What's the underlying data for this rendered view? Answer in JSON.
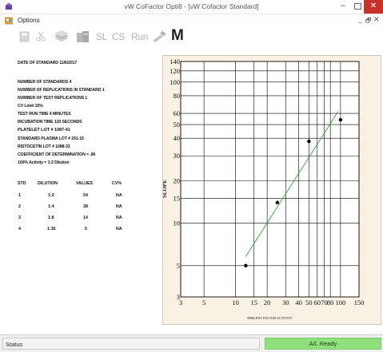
{
  "window": {
    "title": "vW CoFactor Opti8 - [vW Cofactor Standard]",
    "min_glyph": "–",
    "close_glyph": "✕"
  },
  "menu": {
    "options_label": "Options",
    "mdi_min": "_",
    "mdi_restore": "🗗",
    "mdi_close": "✕"
  },
  "toolbar": {
    "sl_label": "SL",
    "cs_label": "CS",
    "run_label": "Run",
    "m_label": "M"
  },
  "report": {
    "lines": [
      "DATE OF STANDARD 11/6/2017",
      "NUMBER OF STANDARDS 4",
      "NUMBER OF REPLICATIONS IN STANDARD 1",
      "NUMBER OF TEST REPLICATIONS 1",
      "CV Limit 15%",
      "TEST RUN TIME 4 MINUTES",
      "INCUBATION TIME 120 SECONDS",
      "PLATELET LOT # 1087-41",
      "STANDARD PLASMA LOT # 291-15",
      "RISTOCETIN LOT # 1088-33",
      "COEFFICIENT OF DETERMINATION = .96",
      "100% Activity = 1:2 Dilution"
    ],
    "table": {
      "headers": [
        "STD",
        "DILUTION",
        "VALUES",
        "CV%"
      ],
      "rows": [
        [
          "1",
          "1:2",
          "54",
          "NA"
        ],
        [
          "2",
          "1:4",
          "38",
          "NA"
        ],
        [
          "3",
          "1:8",
          "14",
          "NA"
        ],
        [
          "4",
          "1:16",
          "5",
          "NA"
        ]
      ]
    }
  },
  "chart_data": {
    "type": "scatter",
    "xlabel": "PERCENT FACTOR ACTIVITY",
    "ylabel": "SLOPE",
    "x_scale": "log",
    "y_scale": "log",
    "xlim": [
      3,
      150
    ],
    "ylim": [
      3,
      140
    ],
    "x_ticks": [
      3,
      5,
      10,
      15,
      20,
      30,
      40,
      50,
      60,
      70,
      80,
      100,
      150
    ],
    "x_tick_labels": [
      "3",
      "5",
      "10",
      "15",
      "20",
      "30",
      "40",
      "50",
      "60",
      "70",
      "80",
      "100",
      "150"
    ],
    "y_ticks": [
      3,
      5,
      10,
      15,
      20,
      30,
      40,
      50,
      60,
      80,
      100,
      120,
      140
    ],
    "y_tick_labels": [
      "3",
      "5",
      "10",
      "15",
      "20",
      "30",
      "40",
      "50",
      "60",
      "80",
      "100",
      "120",
      "140"
    ],
    "grid": true,
    "points": [
      {
        "x": 12.5,
        "y": 5
      },
      {
        "x": 25,
        "y": 14
      },
      {
        "x": 50,
        "y": 38
      },
      {
        "x": 100,
        "y": 54
      }
    ],
    "fit_line": {
      "x": [
        12.5,
        95
      ],
      "y": [
        5.8,
        62
      ]
    },
    "point_color": "#000000",
    "fit_color": "#3a9a3a",
    "grid_color": "#000000",
    "plot_background": "#ffffff",
    "panel_background": "#f9f1e3"
  },
  "status": {
    "left_text": "Status",
    "right_text": "A/L Ready",
    "right_color": "#8fe07c"
  }
}
